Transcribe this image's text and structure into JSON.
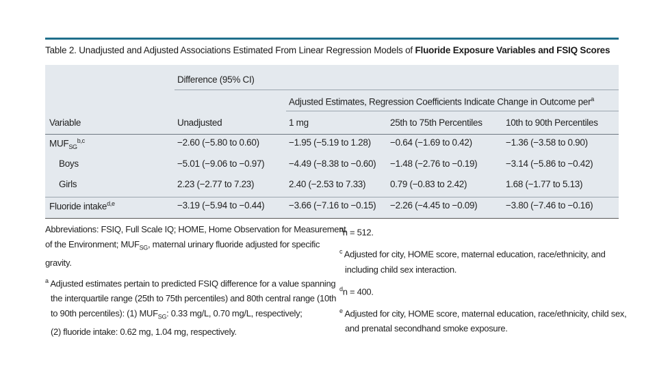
{
  "title": {
    "prefix": "Table 2. Unadjusted and Adjusted Associations Estimated From Linear Regression Models of ",
    "bold": "Fluoride Exposure Variables and FSIQ Scores"
  },
  "headers": {
    "difference": "Difference (95% CI)",
    "adjusted_group": "Adjusted Estimates, Regression Coefficients Indicate Change in Outcome per",
    "adjusted_group_sup": "a",
    "variable": "Variable",
    "unadjusted": "Unadjusted",
    "per_mg": "1 mg",
    "p25_75": "25th to 75th Percentiles",
    "p10_90": "10th to 90th Percentiles"
  },
  "rows": [
    {
      "var": "MUF",
      "var_sub": "SG",
      "var_sup": "b,c",
      "unadj": "−2.60 (−5.80 to 0.60)",
      "mg": "−1.95 (−5.19 to 1.28)",
      "p2575": "−0.64 (−1.69 to 0.42)",
      "p1090": "−1.36 (−3.58 to 0.90)"
    },
    {
      "var": "Boys",
      "var_sub": "",
      "var_sup": "",
      "unadj": "−5.01 (−9.06 to −0.97)",
      "mg": "−4.49 (−8.38 to −0.60)",
      "p2575": "−1.48 (−2.76 to −0.19)",
      "p1090": "−3.14 (−5.86 to −0.42)"
    },
    {
      "var": "Girls",
      "var_sub": "",
      "var_sup": "",
      "unadj": "2.23 (−2.77 to 7.23)",
      "mg": "2.40 (−2.53 to 7.33)",
      "p2575": "0.79 (−0.83 to 2.42)",
      "p1090": "1.68 (−1.77 to 5.13)"
    },
    {
      "var": "Fluoride intake",
      "var_sub": "",
      "var_sup": "d,e",
      "unadj": "−3.19 (−5.94 to −0.44)",
      "mg": "−3.66 (−7.16 to −0.15)",
      "p2575": "−2.26 (−4.45 to −0.09)",
      "p1090": "−3.80 (−7.46 to −0.16)"
    }
  ],
  "notes_left": {
    "abbr_1": "Abbreviations: FSIQ, Full Scale IQ; HOME, Home Observation for Measurement",
    "abbr_2a": "of the Environment; MUF",
    "abbr_2sub": "SG",
    "abbr_2b": ", maternal urinary fluoride adjusted for specific",
    "abbr_3": "gravity.",
    "a_mark": "a",
    "a_1": " Adjusted estimates pertain to predicted FSIQ difference for a value spanning",
    "a_2": "the interquartile range (25th to 75th percentiles) and 80th central range (10th",
    "a_3a": "to 90th percentiles): (1) MUF",
    "a_3sub": "SG",
    "a_3b": ": 0.33 mg/L, 0.70 mg/L, respectively;",
    "a_4": "(2) fluoride intake: 0.62 mg, 1.04 mg, respectively."
  },
  "notes_right": {
    "b_mark": "b",
    "b": "n = 512.",
    "c_mark": "c",
    "c_1": " Adjusted for city, HOME score, maternal education, race/ethnicity, and",
    "c_2": "including child sex interaction.",
    "d_mark": "d",
    "d": "n = 400.",
    "e_mark": "e",
    "e_1": " Adjusted for city, HOME score, maternal education, race/ethnicity, child sex,",
    "e_2": "and prenatal secondhand smoke exposure."
  },
  "colors": {
    "accent_bar": "#1f6f8b",
    "table_bg": "#e4e9ee"
  }
}
